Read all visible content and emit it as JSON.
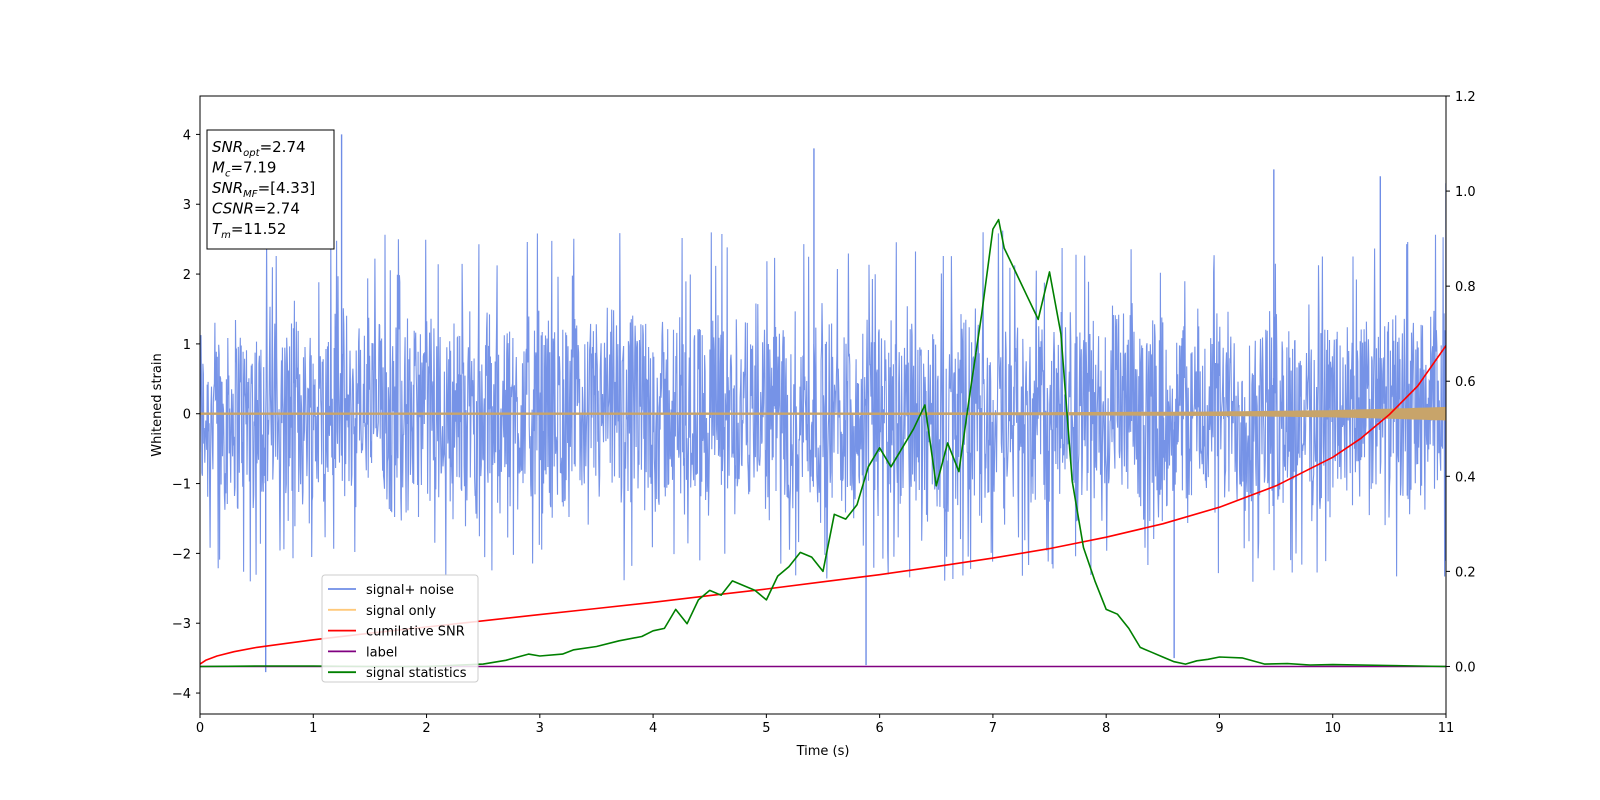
{
  "chart_data": {
    "type": "line",
    "xlabel": "Time (s)",
    "ylabel": "Whitened strain",
    "xlim": [
      0,
      11
    ],
    "ylim": [
      -4.3,
      4.55
    ],
    "y2lim": [
      -0.1,
      1.2
    ],
    "xticks": [
      0,
      1,
      2,
      3,
      4,
      5,
      6,
      7,
      8,
      9,
      10,
      11
    ],
    "yticks": [
      -4,
      -3,
      -2,
      -1,
      0,
      1,
      2,
      3,
      4
    ],
    "y2ticks": [
      "0.0",
      "0.2",
      "0.4",
      "0.6",
      "0.8",
      "1.0",
      "1.2"
    ],
    "legend_position": "lower-left",
    "legend": [
      {
        "name": "signal+ noise",
        "color": "#6f8de6"
      },
      {
        "name": "signal only",
        "color": "#ffc97a"
      },
      {
        "name": "cumilative SNR",
        "color": "#ff0000"
      },
      {
        "name": "label",
        "color": "#800080"
      },
      {
        "name": "signal statistics",
        "color": "#008000"
      }
    ],
    "annotation_lines": [
      {
        "main": "SNR",
        "sub": "opt",
        "rest": "=2.74"
      },
      {
        "main": "M",
        "sub": "c",
        "rest": "=7.19"
      },
      {
        "main": "SNR",
        "sub": "MF",
        "rest": "=[4.33]"
      },
      {
        "main": "CSNR",
        "sub": "",
        "rest": "=2.74"
      },
      {
        "main": "T",
        "sub": "m",
        "rest": "=11.52"
      }
    ],
    "series": [
      {
        "name": "signal+ noise",
        "axis": "left",
        "color": "#6f8de6",
        "style": "dense-noise",
        "band": [
          -1.6,
          1.6
        ],
        "typical_peak": [
          -2.3,
          2.5
        ],
        "spikes": [
          [
            0.58,
            -3.7
          ],
          [
            1.25,
            4.0
          ],
          [
            5.42,
            3.8
          ],
          [
            5.88,
            -3.6
          ],
          [
            8.6,
            -3.5
          ],
          [
            9.48,
            3.5
          ],
          [
            10.42,
            3.4
          ],
          [
            11.0,
            3.3
          ]
        ]
      },
      {
        "name": "signal only",
        "axis": "left",
        "color": "#ffc97a",
        "style": "chirp",
        "x": [
          0,
          4,
          7,
          9,
          10,
          10.5,
          11
        ],
        "amplitude": [
          0.005,
          0.008,
          0.012,
          0.025,
          0.045,
          0.065,
          0.09
        ]
      },
      {
        "name": "cumilative SNR",
        "axis": "right",
        "color": "#ff0000",
        "style": "line",
        "x": [
          0,
          0.05,
          0.15,
          0.3,
          0.5,
          0.75,
          1,
          1.5,
          2,
          2.5,
          3,
          3.5,
          4,
          4.5,
          5,
          5.5,
          6,
          6.5,
          7,
          7.5,
          8,
          8.5,
          9,
          9.5,
          10,
          10.25,
          10.5,
          10.75,
          11
        ],
        "y": [
          0.005,
          0.013,
          0.022,
          0.031,
          0.04,
          0.048,
          0.056,
          0.07,
          0.083,
          0.096,
          0.109,
          0.122,
          0.135,
          0.149,
          0.163,
          0.178,
          0.193,
          0.21,
          0.228,
          0.248,
          0.272,
          0.3,
          0.335,
          0.38,
          0.44,
          0.48,
          0.53,
          0.59,
          0.675
        ]
      },
      {
        "name": "label",
        "axis": "right",
        "color": "#800080",
        "style": "line",
        "x": [
          0,
          11
        ],
        "y": [
          0,
          0
        ]
      },
      {
        "name": "signal statistics",
        "axis": "right",
        "color": "#008000",
        "style": "line",
        "x": [
          0,
          0.5,
          1,
          1.5,
          2,
          2.5,
          2.7,
          2.9,
          3.0,
          3.2,
          3.3,
          3.5,
          3.7,
          3.9,
          4.0,
          4.1,
          4.2,
          4.3,
          4.4,
          4.5,
          4.6,
          4.7,
          4.8,
          4.9,
          5.0,
          5.1,
          5.2,
          5.3,
          5.4,
          5.5,
          5.6,
          5.7,
          5.8,
          5.9,
          6.0,
          6.1,
          6.2,
          6.25,
          6.3,
          6.4,
          6.5,
          6.6,
          6.7,
          6.8,
          6.9,
          7.0,
          7.05,
          7.1,
          7.2,
          7.3,
          7.4,
          7.5,
          7.6,
          7.7,
          7.8,
          7.9,
          8.0,
          8.1,
          8.2,
          8.3,
          8.4,
          8.5,
          8.6,
          8.7,
          8.8,
          8.9,
          9.0,
          9.2,
          9.4,
          9.6,
          9.8,
          10.0,
          10.5,
          11.0
        ],
        "y": [
          0,
          0.001,
          0.001,
          0,
          0,
          0.005,
          0.013,
          0.026,
          0.022,
          0.026,
          0.035,
          0.042,
          0.054,
          0.063,
          0.075,
          0.08,
          0.12,
          0.09,
          0.14,
          0.16,
          0.15,
          0.18,
          0.17,
          0.16,
          0.14,
          0.19,
          0.21,
          0.24,
          0.23,
          0.2,
          0.32,
          0.31,
          0.34,
          0.42,
          0.46,
          0.42,
          0.46,
          0.48,
          0.5,
          0.55,
          0.38,
          0.47,
          0.41,
          0.58,
          0.74,
          0.92,
          0.94,
          0.88,
          0.83,
          0.78,
          0.73,
          0.83,
          0.7,
          0.39,
          0.25,
          0.18,
          0.12,
          0.11,
          0.08,
          0.04,
          0.03,
          0.02,
          0.01,
          0.005,
          0.012,
          0.015,
          0.02,
          0.018,
          0.005,
          0.006,
          0.003,
          0.004,
          0.002,
          0.0
        ]
      }
    ]
  }
}
